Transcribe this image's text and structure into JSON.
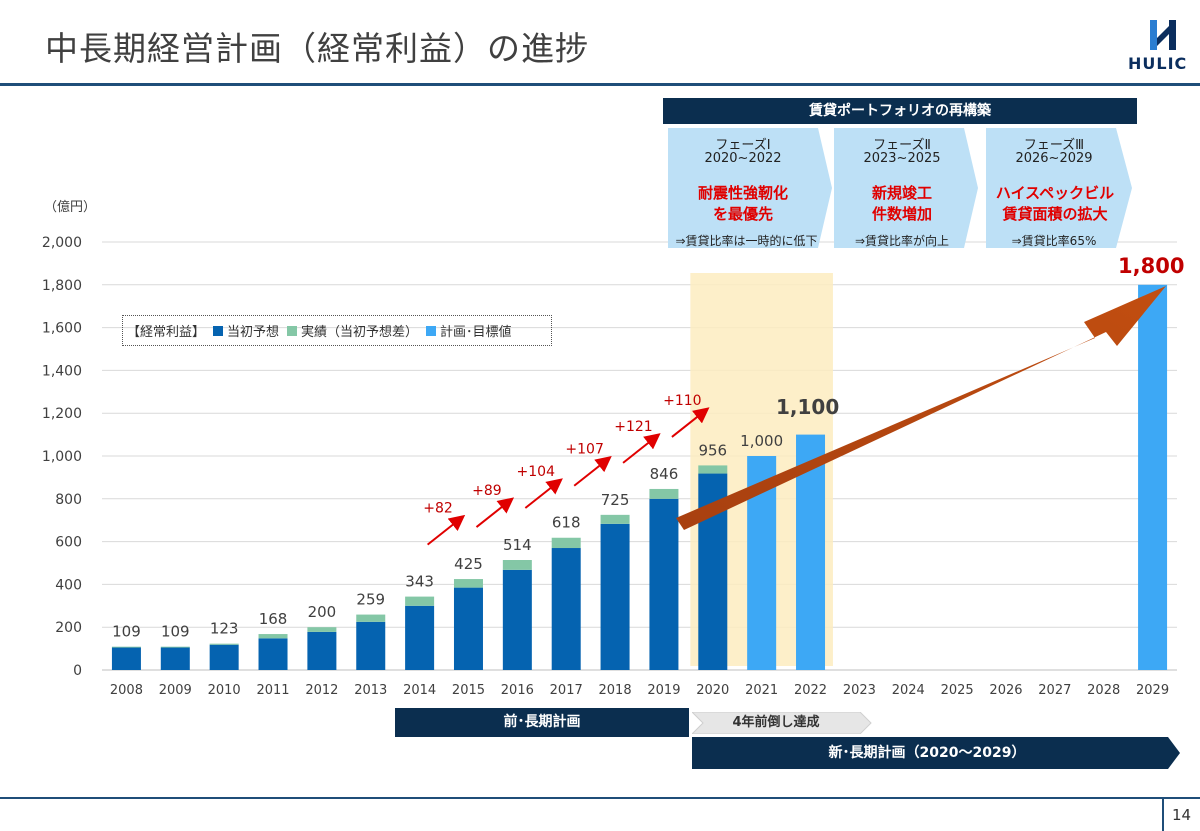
{
  "page": {
    "title": "中長期経営計画（経常利益）の進捗",
    "page_number": "14",
    "logo_text": "HULIC",
    "unit_label": "（億円）"
  },
  "legend": {
    "prefix": "【経常利益】",
    "items": [
      {
        "label": "当初予想",
        "color": "#0563b0"
      },
      {
        "label": "実績（当初予想差）",
        "color": "#84c7a6"
      },
      {
        "label": "計画･目標値",
        "color": "#3da8f5"
      }
    ]
  },
  "banner": {
    "label": "賃貸ポートフォリオの再構築"
  },
  "phases": [
    {
      "name": "フェーズⅠ",
      "years": "2020~2022",
      "main_line1": "耐震性強靭化",
      "main_line2": "を最優先",
      "note": "⇒賃貸比率は一時的に低下"
    },
    {
      "name": "フェーズⅡ",
      "years": "2023~2025",
      "main_line1": "新規竣工",
      "main_line2": "件数増加",
      "note": "⇒賃貸比率が向上"
    },
    {
      "name": "フェーズⅢ",
      "years": "2026~2029",
      "main_line1": "ハイスペックビル",
      "main_line2": "賃貸面積の拡大",
      "note": "⇒賃貸比率65%"
    }
  ],
  "plans": {
    "previous": "前･長期計画",
    "ahead": "4年前倒し達成",
    "new": "新･長期計画（2020～2029）"
  },
  "chart_data": {
    "type": "bar",
    "stacked": true,
    "categories": [
      "2008",
      "2009",
      "2010",
      "2011",
      "2012",
      "2013",
      "2014",
      "2015",
      "2016",
      "2017",
      "2018",
      "2019",
      "2020",
      "2021",
      "2022",
      "2023",
      "2024",
      "2025",
      "2026",
      "2027",
      "2028",
      "2029"
    ],
    "ylim": [
      0,
      2000
    ],
    "yticks": [
      "0",
      "200",
      "400",
      "600",
      "800",
      "1,000",
      "1,200",
      "1,400",
      "1,600",
      "1,800",
      "2,000"
    ],
    "grid": true,
    "series": [
      {
        "name": "当初予想",
        "color": "#0563b0",
        "values": [
          105,
          105,
          118,
          148,
          178,
          225,
          300,
          385,
          468,
          570,
          683,
          800,
          918,
          null,
          null,
          null,
          null,
          null,
          null,
          null,
          null,
          null
        ]
      },
      {
        "name": "実績（当初予想差）",
        "color": "#84c7a6",
        "values": [
          4,
          4,
          5,
          20,
          22,
          34,
          43,
          40,
          46,
          48,
          42,
          46,
          38,
          null,
          null,
          null,
          null,
          null,
          null,
          null,
          null,
          null
        ]
      },
      {
        "name": "計画･目標値",
        "color": "#3da8f5",
        "values": [
          null,
          null,
          null,
          null,
          null,
          null,
          null,
          null,
          null,
          null,
          null,
          null,
          null,
          1000,
          1100,
          null,
          null,
          null,
          null,
          null,
          null,
          1800
        ]
      }
    ],
    "data_labels": [
      "109",
      "109",
      "123",
      "168",
      "200",
      "259",
      "343",
      "425",
      "514",
      "618",
      "725",
      "846",
      "956",
      "1,000",
      "",
      "",
      "",
      "",
      "",
      "",
      "",
      ""
    ],
    "increments": [
      {
        "from": "2014",
        "label": "+82"
      },
      {
        "from": "2015",
        "label": "+89"
      },
      {
        "from": "2016",
        "label": "+104"
      },
      {
        "from": "2017",
        "label": "+107"
      },
      {
        "from": "2018",
        "label": "+121"
      },
      {
        "from": "2019",
        "label": "+110"
      }
    ],
    "highlight_label_2022": "1,100",
    "target_label_2029": "1,800",
    "highlight_range": [
      "2020",
      "2022"
    ]
  }
}
